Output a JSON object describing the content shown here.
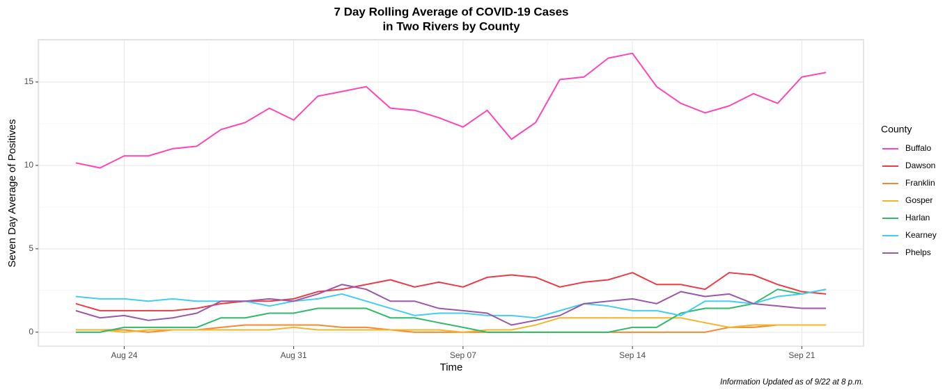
{
  "chart_data": {
    "type": "line",
    "title": [
      "7 Day Rolling Average of COVID-19 Cases",
      "in Two Rivers by County"
    ],
    "x_label": "Time",
    "y_label": "Seven Day Average of Positives",
    "caption": "Information Updated as of 9/22 at 8 p.m.",
    "legend_title": "County",
    "legend": "right",
    "grid": true,
    "x": [
      "08-22",
      "08-23",
      "08-24",
      "08-25",
      "08-26",
      "08-27",
      "08-28",
      "08-29",
      "08-30",
      "08-31",
      "09-01",
      "09-02",
      "09-03",
      "09-04",
      "09-05",
      "09-06",
      "09-07",
      "09-08",
      "09-09",
      "09-10",
      "09-11",
      "09-12",
      "09-13",
      "09-14",
      "09-15",
      "09-16",
      "09-17",
      "09-18",
      "09-19",
      "09-20",
      "09-21",
      "09-22"
    ],
    "xlim": [
      "08-22",
      "09-22"
    ],
    "xticks": [
      {
        "value": "08-24",
        "label": "Aug 24"
      },
      {
        "value": "08-31",
        "label": "Aug 31"
      },
      {
        "value": "09-07",
        "label": "Sep 07"
      },
      {
        "value": "09-14",
        "label": "Sep 14"
      },
      {
        "value": "09-21",
        "label": "Sep 21"
      }
    ],
    "ylim": [
      -0.84,
      17.54
    ],
    "yticks": [
      0,
      5,
      10,
      15
    ],
    "series": [
      {
        "name": "Buffalo",
        "color": "#ff45b5",
        "values": [
          10.15,
          9.85,
          10.57,
          10.57,
          11.0,
          11.15,
          12.15,
          12.57,
          13.43,
          12.72,
          14.15,
          14.43,
          14.72,
          13.43,
          13.3,
          12.86,
          12.3,
          13.3,
          11.57,
          12.57,
          15.15,
          15.3,
          16.43,
          16.72,
          14.72,
          13.72,
          13.15,
          13.57,
          14.3,
          13.72,
          15.3,
          15.57
        ]
      },
      {
        "name": "Dawson",
        "color": "#ec3b45",
        "values": [
          1.71,
          1.29,
          1.29,
          1.29,
          1.29,
          1.43,
          1.71,
          1.86,
          1.86,
          2.0,
          2.43,
          2.57,
          2.86,
          3.14,
          2.71,
          3.0,
          2.71,
          3.29,
          3.43,
          3.29,
          2.71,
          3.0,
          3.14,
          3.57,
          2.86,
          2.86,
          2.57,
          3.57,
          3.43,
          2.86,
          2.43,
          2.29
        ]
      },
      {
        "name": "Franklin",
        "color": "#f58a33",
        "values": [
          0.14,
          0.14,
          0.14,
          0,
          0.14,
          0.14,
          0.29,
          0.43,
          0.43,
          0.43,
          0.43,
          0.29,
          0.29,
          0.14,
          0,
          0,
          0,
          0,
          0,
          0,
          0,
          0,
          0,
          0,
          0,
          0,
          0,
          0.29,
          0.29,
          0.43,
          0.43,
          0.43
        ]
      },
      {
        "name": "Gosper",
        "color": "#f2b62b",
        "values": [
          0.14,
          0.14,
          0,
          0.14,
          0.14,
          0.14,
          0.14,
          0.14,
          0.14,
          0.29,
          0.14,
          0.14,
          0.14,
          0.14,
          0.14,
          0.14,
          0,
          0.14,
          0.14,
          0.43,
          0.86,
          0.86,
          0.86,
          0.86,
          0.86,
          0.86,
          0.57,
          0.29,
          0.43,
          0.43,
          0.43,
          0.43
        ]
      },
      {
        "name": "Harlan",
        "color": "#2fb96b",
        "values": [
          0,
          0,
          0.29,
          0.29,
          0.29,
          0.29,
          0.86,
          0.86,
          1.14,
          1.14,
          1.43,
          1.43,
          1.43,
          0.86,
          0.86,
          0.57,
          0.29,
          0,
          0,
          0,
          0,
          0,
          0,
          0.29,
          0.29,
          1.14,
          1.43,
          1.43,
          1.71,
          2.57,
          2.29,
          2.57
        ]
      },
      {
        "name": "Kearney",
        "color": "#42cdf2",
        "values": [
          2.14,
          2.0,
          2.0,
          1.86,
          2.0,
          1.86,
          1.86,
          1.86,
          1.57,
          1.86,
          2.0,
          2.29,
          1.86,
          1.43,
          1.0,
          1.14,
          1.14,
          1.0,
          1.0,
          0.86,
          1.29,
          1.71,
          1.57,
          1.29,
          1.29,
          1.0,
          1.86,
          1.86,
          1.71,
          2.14,
          2.29,
          2.57
        ]
      },
      {
        "name": "Phelps",
        "color": "#9b56a8",
        "values": [
          1.29,
          0.86,
          1.0,
          0.71,
          0.86,
          1.14,
          1.86,
          1.86,
          2.0,
          1.86,
          2.29,
          2.86,
          2.57,
          1.86,
          1.86,
          1.43,
          1.29,
          1.14,
          0.43,
          0.71,
          1.0,
          1.71,
          1.86,
          2.0,
          1.71,
          2.43,
          2.14,
          2.29,
          1.71,
          1.57,
          1.43,
          1.43
        ]
      }
    ]
  }
}
